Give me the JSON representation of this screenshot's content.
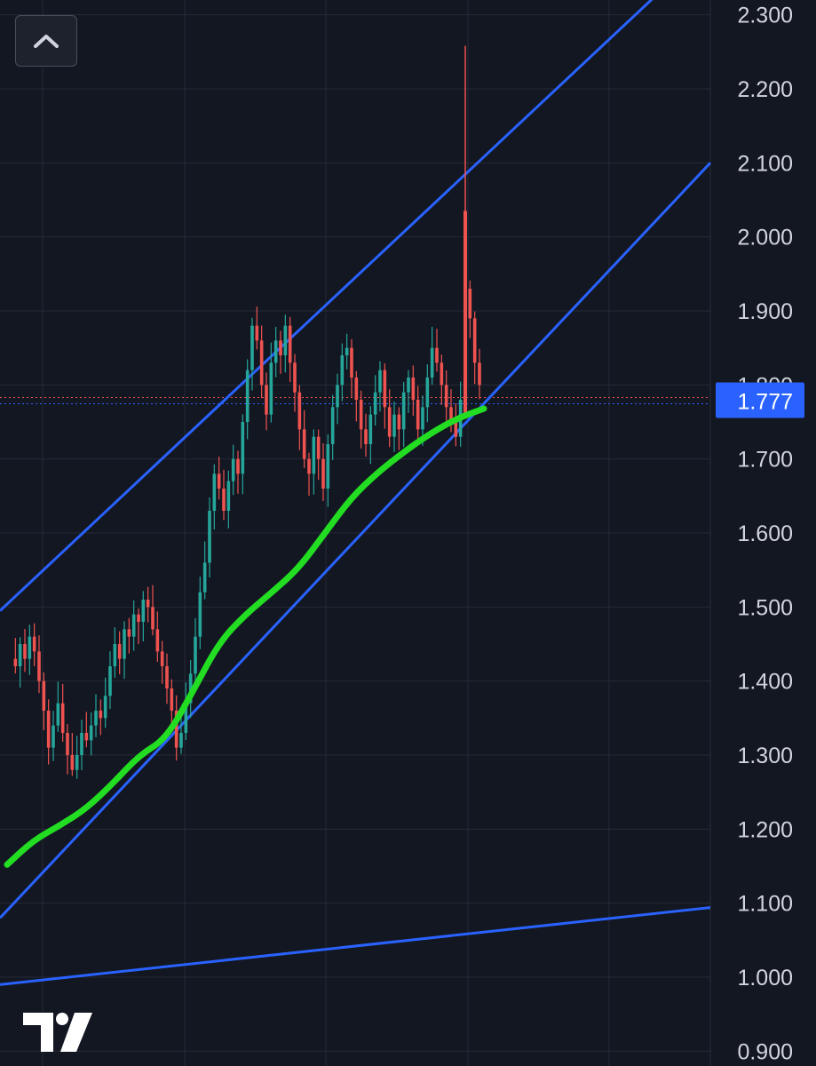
{
  "chart_data": {
    "type": "candlestick",
    "y_axis": {
      "position": "right",
      "ticks": [
        "2.300",
        "2.200",
        "2.100",
        "2.000",
        "1.900",
        "1.800",
        "1.700",
        "1.600",
        "1.500",
        "1.400",
        "1.300",
        "1.200",
        "1.100",
        "1.000",
        "0.900"
      ],
      "ylim": [
        0.88,
        2.32
      ]
    },
    "last_price": {
      "label": "1.777",
      "value": 1.777,
      "color": "#2962ff"
    },
    "price_path": [
      1.43,
      1.42,
      1.45,
      1.43,
      1.46,
      1.44,
      1.4,
      1.36,
      1.31,
      1.34,
      1.37,
      1.33,
      1.3,
      1.28,
      1.3,
      1.33,
      1.32,
      1.34,
      1.36,
      1.35,
      1.38,
      1.42,
      1.45,
      1.43,
      1.47,
      1.46,
      1.49,
      1.48,
      1.51,
      1.5,
      1.47,
      1.44,
      1.42,
      1.39,
      1.36,
      1.31,
      1.33,
      1.37,
      1.41,
      1.46,
      1.52,
      1.56,
      1.63,
      1.68,
      1.66,
      1.63,
      1.67,
      1.7,
      1.68,
      1.75,
      1.82,
      1.88,
      1.86,
      1.8,
      1.76,
      1.83,
      1.86,
      1.84,
      1.88,
      1.83,
      1.79,
      1.74,
      1.7,
      1.68,
      1.73,
      1.7,
      1.66,
      1.72,
      1.77,
      1.8,
      1.84,
      1.85,
      1.81,
      1.78,
      1.74,
      1.72,
      1.76,
      1.79,
      1.82,
      1.77,
      1.73,
      1.76,
      1.74,
      1.79,
      1.81,
      1.78,
      1.74,
      1.77,
      1.81,
      1.85,
      1.83,
      1.8,
      1.77,
      1.75,
      1.73,
      1.78,
      1.93,
      1.89,
      1.83,
      1.8
    ],
    "spike": {
      "high": 2.258,
      "close": 2.035,
      "low": 1.755
    },
    "trendlines": [
      {
        "name": "",
        "color": "#2962ff",
        "from": [
          0,
          1.495
        ],
        "to": [
          1,
          2.395
        ]
      },
      {
        "name": "",
        "color": "#2962ff",
        "from": [
          0,
          1.08
        ],
        "to": [
          1,
          2.1
        ]
      },
      {
        "name": "",
        "color": "#2962ff",
        "from": [
          0,
          0.99
        ],
        "to": [
          1,
          1.094
        ]
      }
    ],
    "moving_average": {
      "color": "#22dd22",
      "values": [
        1.152,
        1.185,
        1.205,
        1.228,
        1.262,
        1.3,
        1.322,
        1.385,
        1.452,
        1.49,
        1.52,
        1.552,
        1.6,
        1.648,
        1.682,
        1.71,
        1.735,
        1.755,
        1.768
      ]
    },
    "colors": {
      "up": "#26a69a",
      "down": "#ef5350",
      "background": "#131722",
      "grid": "#252a36"
    }
  },
  "ui": {
    "collapse_icon": "chevron-up-icon",
    "logo": "tradingview-logo"
  }
}
